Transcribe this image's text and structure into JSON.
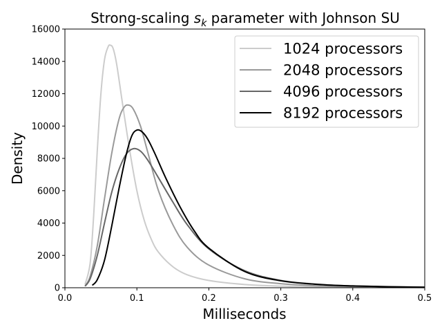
{
  "chart_data": {
    "type": "line",
    "title_prefix": "Strong-scaling ",
    "title_math_base": "s",
    "title_math_sub": "k",
    "title_suffix": " parameter with Johnson SU",
    "xlabel": "Milliseconds",
    "ylabel": "Density",
    "xlim": [
      0.0,
      0.5
    ],
    "ylim": [
      0,
      16000
    ],
    "xticks": [
      0.0,
      0.1,
      0.2,
      0.3,
      0.4,
      0.5
    ],
    "xtick_labels": [
      "0.0",
      "0.1",
      "0.2",
      "0.3",
      "0.4",
      "0.5"
    ],
    "yticks": [
      0,
      2000,
      4000,
      6000,
      8000,
      10000,
      12000,
      14000,
      16000
    ],
    "ytick_labels": [
      "0",
      "2000",
      "4000",
      "6000",
      "8000",
      "10000",
      "12000",
      "14000",
      "16000"
    ],
    "grid": false,
    "legend_position": "top-right",
    "series": [
      {
        "name": "1024 processors",
        "color": "#cccccc",
        "points": [
          [
            0.028,
            200
          ],
          [
            0.035,
            1500
          ],
          [
            0.04,
            4500
          ],
          [
            0.045,
            8500
          ],
          [
            0.05,
            12000
          ],
          [
            0.055,
            14100
          ],
          [
            0.06,
            14900
          ],
          [
            0.063,
            15000
          ],
          [
            0.067,
            14800
          ],
          [
            0.072,
            13800
          ],
          [
            0.08,
            11400
          ],
          [
            0.09,
            8500
          ],
          [
            0.1,
            6000
          ],
          [
            0.11,
            4200
          ],
          [
            0.12,
            3000
          ],
          [
            0.13,
            2200
          ],
          [
            0.15,
            1300
          ],
          [
            0.17,
            800
          ],
          [
            0.2,
            450
          ],
          [
            0.25,
            200
          ],
          [
            0.3,
            100
          ],
          [
            0.35,
            50
          ],
          [
            0.4,
            25
          ],
          [
            0.5,
            5
          ]
        ]
      },
      {
        "name": "2048 processors",
        "color": "#999999",
        "points": [
          [
            0.028,
            100
          ],
          [
            0.035,
            700
          ],
          [
            0.045,
            2600
          ],
          [
            0.055,
            5500
          ],
          [
            0.065,
            8300
          ],
          [
            0.075,
            10400
          ],
          [
            0.082,
            11150
          ],
          [
            0.088,
            11300
          ],
          [
            0.095,
            11050
          ],
          [
            0.105,
            10000
          ],
          [
            0.115,
            8400
          ],
          [
            0.13,
            6000
          ],
          [
            0.15,
            3900
          ],
          [
            0.17,
            2500
          ],
          [
            0.2,
            1400
          ],
          [
            0.25,
            550
          ],
          [
            0.3,
            250
          ],
          [
            0.35,
            120
          ],
          [
            0.4,
            60
          ],
          [
            0.5,
            15
          ]
        ]
      },
      {
        "name": "4096 processors",
        "color": "#666666",
        "points": [
          [
            0.028,
            100
          ],
          [
            0.035,
            550
          ],
          [
            0.045,
            2000
          ],
          [
            0.055,
            4000
          ],
          [
            0.065,
            5900
          ],
          [
            0.075,
            7300
          ],
          [
            0.085,
            8250
          ],
          [
            0.095,
            8600
          ],
          [
            0.105,
            8450
          ],
          [
            0.115,
            7900
          ],
          [
            0.13,
            6800
          ],
          [
            0.15,
            5300
          ],
          [
            0.17,
            3900
          ],
          [
            0.2,
            2400
          ],
          [
            0.25,
            1050
          ],
          [
            0.3,
            450
          ],
          [
            0.35,
            220
          ],
          [
            0.4,
            110
          ],
          [
            0.5,
            30
          ]
        ]
      },
      {
        "name": "8192 processors",
        "color": "#000000",
        "points": [
          [
            0.038,
            150
          ],
          [
            0.045,
            500
          ],
          [
            0.055,
            1700
          ],
          [
            0.065,
            3800
          ],
          [
            0.075,
            6100
          ],
          [
            0.085,
            8200
          ],
          [
            0.093,
            9400
          ],
          [
            0.1,
            9750
          ],
          [
            0.107,
            9650
          ],
          [
            0.115,
            9200
          ],
          [
            0.125,
            8300
          ],
          [
            0.14,
            6800
          ],
          [
            0.16,
            5000
          ],
          [
            0.18,
            3500
          ],
          [
            0.2,
            2450
          ],
          [
            0.25,
            1000
          ],
          [
            0.3,
            430
          ],
          [
            0.35,
            210
          ],
          [
            0.4,
            110
          ],
          [
            0.45,
            60
          ],
          [
            0.5,
            30
          ]
        ]
      }
    ]
  }
}
